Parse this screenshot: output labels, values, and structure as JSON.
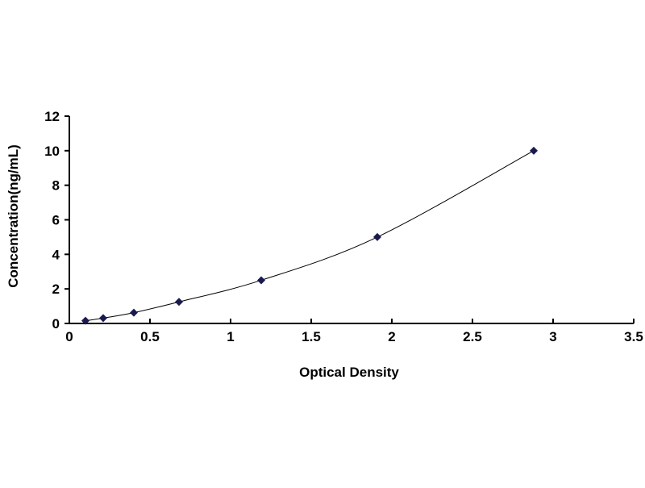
{
  "chart_data": {
    "type": "scatter",
    "title": "",
    "xlabel": "Optical Density",
    "ylabel": "Concentration(ng/mL)",
    "xlim": [
      0,
      3.5
    ],
    "ylim": [
      0,
      12
    ],
    "x_ticks": [
      "0",
      "0.5",
      "1",
      "1.5",
      "2",
      "2.5",
      "3",
      "3.5"
    ],
    "y_ticks": [
      "0",
      "2",
      "4",
      "6",
      "8",
      "10",
      "12"
    ],
    "grid": false,
    "legend": "none",
    "marker": "diamond",
    "marker_color": "#1a1a4e",
    "line_color": "#000000",
    "trendline": "smooth curve",
    "series": [
      {
        "x": [
          0.1,
          0.21,
          0.4,
          0.68,
          1.19,
          1.91,
          2.88
        ],
        "y": [
          0.156,
          0.312,
          0.625,
          1.25,
          2.5,
          5,
          10
        ]
      }
    ]
  }
}
